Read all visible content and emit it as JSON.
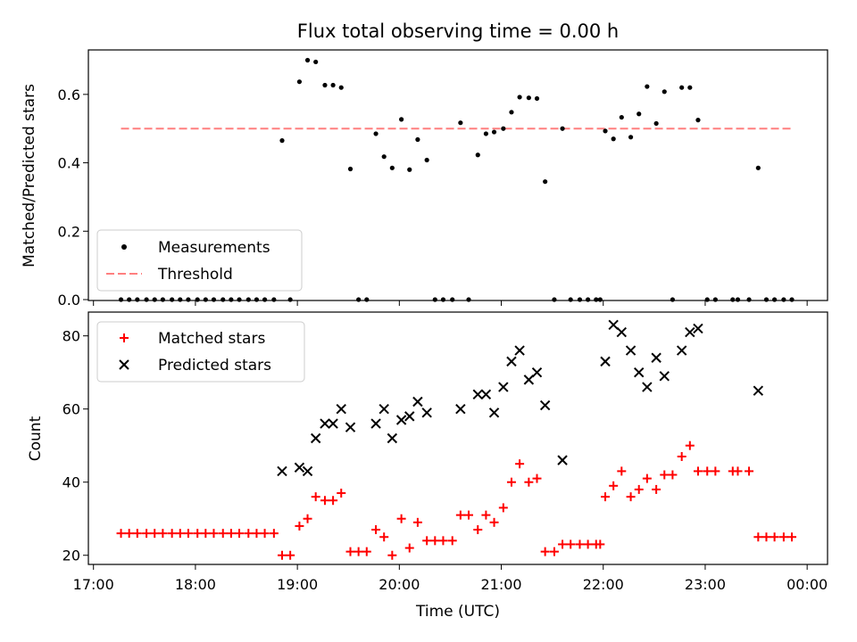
{
  "chart_data": [
    {
      "type": "scatter",
      "title": "Flux total observing time = 0.00 h",
      "ylabel": "Matched/Predicted stars",
      "ylim": [
        0,
        0.73
      ],
      "yticks": [
        0.0,
        0.2,
        0.4,
        0.6
      ],
      "ytick_labels": [
        "0.0",
        "0.2",
        "0.4",
        "0.6"
      ],
      "legend_position": "lower-left",
      "colors": {
        "measurements": "#000000",
        "threshold": "#ff7f7f"
      },
      "series": [
        {
          "name": "Measurements",
          "marker": "dot",
          "color": "#000000",
          "points": [
            [
              17.27,
              0
            ],
            [
              17.35,
              0
            ],
            [
              17.43,
              0
            ],
            [
              17.52,
              0
            ],
            [
              17.6,
              0
            ],
            [
              17.68,
              0
            ],
            [
              17.77,
              0
            ],
            [
              17.85,
              0
            ],
            [
              17.93,
              0
            ],
            [
              18.02,
              0
            ],
            [
              18.1,
              0
            ],
            [
              18.18,
              0
            ],
            [
              18.27,
              0
            ],
            [
              18.35,
              0
            ],
            [
              18.43,
              0
            ],
            [
              18.52,
              0
            ],
            [
              18.6,
              0
            ],
            [
              18.68,
              0
            ],
            [
              18.77,
              0
            ],
            [
              18.85,
              0.465
            ],
            [
              18.93,
              0
            ],
            [
              19.02,
              0.637
            ],
            [
              19.1,
              0.7
            ],
            [
              19.18,
              0.695
            ],
            [
              19.27,
              0.627
            ],
            [
              19.35,
              0.627
            ],
            [
              19.43,
              0.62
            ],
            [
              19.52,
              0.382
            ],
            [
              19.6,
              0
            ],
            [
              19.68,
              0
            ],
            [
              19.77,
              0.485
            ],
            [
              19.85,
              0.418
            ],
            [
              19.93,
              0.385
            ],
            [
              20.02,
              0.527
            ],
            [
              20.1,
              0.38
            ],
            [
              20.18,
              0.468
            ],
            [
              20.27,
              0.408
            ],
            [
              20.35,
              0
            ],
            [
              20.43,
              0
            ],
            [
              20.52,
              0
            ],
            [
              20.6,
              0.517
            ],
            [
              20.68,
              0
            ],
            [
              20.77,
              0.423
            ],
            [
              20.85,
              0.485
            ],
            [
              20.93,
              0.49
            ],
            [
              21.02,
              0.5
            ],
            [
              21.1,
              0.548
            ],
            [
              21.18,
              0.592
            ],
            [
              21.27,
              0.59
            ],
            [
              21.35,
              0.588
            ],
            [
              21.43,
              0.345
            ],
            [
              21.52,
              0
            ],
            [
              21.6,
              0.5
            ],
            [
              21.68,
              0
            ],
            [
              21.77,
              0
            ],
            [
              21.85,
              0
            ],
            [
              21.93,
              0
            ],
            [
              21.97,
              0
            ],
            [
              22.02,
              0.493
            ],
            [
              22.1,
              0.47
            ],
            [
              22.18,
              0.533
            ],
            [
              22.27,
              0.475
            ],
            [
              22.35,
              0.543
            ],
            [
              22.43,
              0.623
            ],
            [
              22.52,
              0.515
            ],
            [
              22.6,
              0.608
            ],
            [
              22.68,
              0
            ],
            [
              22.77,
              0.62
            ],
            [
              22.85,
              0.62
            ],
            [
              22.93,
              0.525
            ],
            [
              23.02,
              0
            ],
            [
              23.1,
              0
            ],
            [
              23.27,
              0
            ],
            [
              23.32,
              0
            ],
            [
              23.43,
              0
            ],
            [
              23.52,
              0.385
            ],
            [
              23.6,
              0
            ],
            [
              23.68,
              0
            ],
            [
              23.77,
              0
            ],
            [
              23.85,
              0
            ]
          ]
        },
        {
          "name": "Threshold",
          "style": "dashed",
          "color": "#ff7f7f",
          "points": [
            [
              17.27,
              0.5
            ],
            [
              23.85,
              0.5
            ]
          ]
        }
      ]
    },
    {
      "type": "scatter",
      "xlabel": "Time (UTC)",
      "ylabel": "Count",
      "xlim": [
        16.95,
        24.2
      ],
      "ylim": [
        17.5,
        86.5
      ],
      "xticks": [
        17,
        18,
        19,
        20,
        21,
        22,
        23,
        24
      ],
      "xtick_labels": [
        "17:00",
        "18:00",
        "19:00",
        "20:00",
        "21:00",
        "22:00",
        "23:00",
        "00:00"
      ],
      "yticks": [
        20,
        40,
        60,
        80
      ],
      "ytick_labels": [
        "20",
        "40",
        "60",
        "80"
      ],
      "legend_position": "top-left",
      "colors": {
        "matched": "#ff0000",
        "predicted": "#000000"
      },
      "series": [
        {
          "name": "Matched stars",
          "marker": "plus",
          "color": "#ff0000",
          "points": [
            [
              17.27,
              26
            ],
            [
              17.35,
              26
            ],
            [
              17.43,
              26
            ],
            [
              17.52,
              26
            ],
            [
              17.6,
              26
            ],
            [
              17.68,
              26
            ],
            [
              17.77,
              26
            ],
            [
              17.85,
              26
            ],
            [
              17.93,
              26
            ],
            [
              18.02,
              26
            ],
            [
              18.1,
              26
            ],
            [
              18.18,
              26
            ],
            [
              18.27,
              26
            ],
            [
              18.35,
              26
            ],
            [
              18.43,
              26
            ],
            [
              18.52,
              26
            ],
            [
              18.6,
              26
            ],
            [
              18.68,
              26
            ],
            [
              18.77,
              26
            ],
            [
              18.85,
              20
            ],
            [
              18.93,
              20
            ],
            [
              19.02,
              28
            ],
            [
              19.1,
              30
            ],
            [
              19.18,
              36
            ],
            [
              19.27,
              35
            ],
            [
              19.35,
              35
            ],
            [
              19.43,
              37
            ],
            [
              19.52,
              21
            ],
            [
              19.6,
              21
            ],
            [
              19.68,
              21
            ],
            [
              19.77,
              27
            ],
            [
              19.85,
              25
            ],
            [
              19.93,
              20
            ],
            [
              20.02,
              30
            ],
            [
              20.1,
              22
            ],
            [
              20.18,
              29
            ],
            [
              20.27,
              24
            ],
            [
              20.35,
              24
            ],
            [
              20.43,
              24
            ],
            [
              20.52,
              24
            ],
            [
              20.6,
              31
            ],
            [
              20.68,
              31
            ],
            [
              20.77,
              27
            ],
            [
              20.85,
              31
            ],
            [
              20.93,
              29
            ],
            [
              21.02,
              33
            ],
            [
              21.1,
              40
            ],
            [
              21.18,
              45
            ],
            [
              21.27,
              40
            ],
            [
              21.35,
              41
            ],
            [
              21.43,
              21
            ],
            [
              21.52,
              21
            ],
            [
              21.6,
              23
            ],
            [
              21.68,
              23
            ],
            [
              21.77,
              23
            ],
            [
              21.85,
              23
            ],
            [
              21.93,
              23
            ],
            [
              21.97,
              23
            ],
            [
              22.02,
              36
            ],
            [
              22.1,
              39
            ],
            [
              22.18,
              43
            ],
            [
              22.27,
              36
            ],
            [
              22.35,
              38
            ],
            [
              22.43,
              41
            ],
            [
              22.52,
              38
            ],
            [
              22.6,
              42
            ],
            [
              22.68,
              42
            ],
            [
              22.77,
              47
            ],
            [
              22.85,
              50
            ],
            [
              22.93,
              43
            ],
            [
              23.02,
              43
            ],
            [
              23.1,
              43
            ],
            [
              23.27,
              43
            ],
            [
              23.32,
              43
            ],
            [
              23.43,
              43
            ],
            [
              23.52,
              25
            ],
            [
              23.6,
              25
            ],
            [
              23.68,
              25
            ],
            [
              23.77,
              25
            ],
            [
              23.85,
              25
            ]
          ]
        },
        {
          "name": "Predicted stars",
          "marker": "x",
          "color": "#000000",
          "points": [
            [
              18.85,
              43
            ],
            [
              19.02,
              44
            ],
            [
              19.1,
              43
            ],
            [
              19.18,
              52
            ],
            [
              19.27,
              56
            ],
            [
              19.35,
              56
            ],
            [
              19.43,
              60
            ],
            [
              19.52,
              55
            ],
            [
              19.77,
              56
            ],
            [
              19.85,
              60
            ],
            [
              19.93,
              52
            ],
            [
              20.02,
              57
            ],
            [
              20.1,
              58
            ],
            [
              20.18,
              62
            ],
            [
              20.27,
              59
            ],
            [
              20.6,
              60
            ],
            [
              20.77,
              64
            ],
            [
              20.85,
              64
            ],
            [
              20.93,
              59
            ],
            [
              21.02,
              66
            ],
            [
              21.1,
              73
            ],
            [
              21.18,
              76
            ],
            [
              21.27,
              68
            ],
            [
              21.35,
              70
            ],
            [
              21.43,
              61
            ],
            [
              21.6,
              46
            ],
            [
              22.02,
              73
            ],
            [
              22.1,
              83
            ],
            [
              22.18,
              81
            ],
            [
              22.27,
              76
            ],
            [
              22.35,
              70
            ],
            [
              22.43,
              66
            ],
            [
              22.52,
              74
            ],
            [
              22.6,
              69
            ],
            [
              22.77,
              76
            ],
            [
              22.85,
              81
            ],
            [
              22.93,
              82
            ],
            [
              23.52,
              65
            ]
          ]
        }
      ]
    }
  ]
}
